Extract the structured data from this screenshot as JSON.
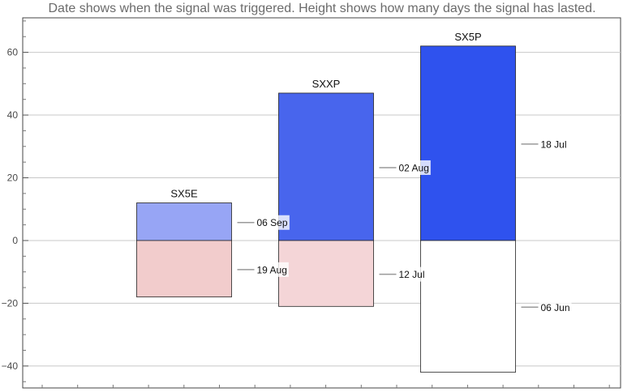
{
  "chart_data": {
    "type": "bar",
    "title": "Date shows when the signal was triggered. Height shows how many days the signal has lasted.",
    "xlabel": "",
    "ylabel": "",
    "ylim": [
      -47,
      71
    ],
    "y_ticks": [
      -40,
      -20,
      0,
      20,
      40,
      60
    ],
    "y_tick_labels": [
      "−40",
      "−20",
      "0",
      "20",
      "40",
      "60"
    ],
    "grid": true,
    "categories": [
      "SX5E",
      "SXXP",
      "SX5P"
    ],
    "series": [
      {
        "values": [
          12,
          47,
          62
        ],
        "dates": [
          "06 Sep",
          "02 Aug",
          "18 Jul"
        ],
        "colors": [
          "#97a5f5",
          "#4865ed",
          "#2f52ee"
        ]
      },
      {
        "values": [
          -18,
          -21,
          -42
        ],
        "dates": [
          "19 Aug",
          "12 Jul",
          "06 Jun"
        ],
        "colors": [
          "#f2cccc",
          "#f4d5d7",
          "#ffffff"
        ]
      }
    ]
  }
}
